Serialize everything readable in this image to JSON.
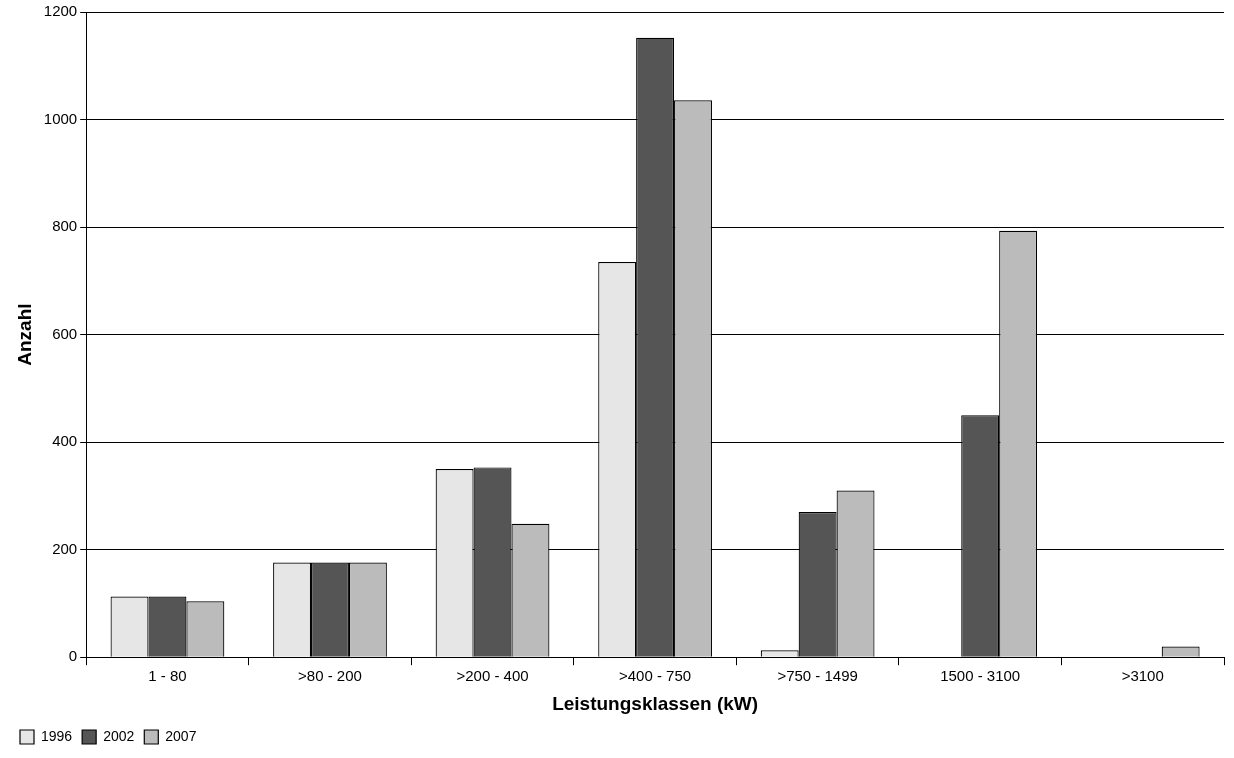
{
  "chart_data": {
    "type": "bar",
    "xlabel": "Leistungsklassen (kW)",
    "ylabel": "Anzahl",
    "categories": [
      "1 - 80",
      ">80 - 200",
      ">200 - 400",
      ">400 - 750",
      ">750 - 1499",
      "1500 - 3100",
      ">3100"
    ],
    "series": [
      {
        "name": "1996",
        "color": "#e6e6e6",
        "values": [
          113,
          176,
          350,
          735,
          13,
          0,
          0
        ]
      },
      {
        "name": "2002",
        "color": "#555555",
        "values": [
          113,
          176,
          353,
          1152,
          270,
          450,
          0
        ]
      },
      {
        "name": "2007",
        "color": "#bbbbbb",
        "values": [
          104,
          176,
          248,
          1036,
          310,
          793,
          20
        ]
      }
    ],
    "ylim": [
      0,
      1200
    ],
    "yticks": [
      0,
      200,
      400,
      600,
      800,
      1000,
      1200
    ],
    "grid": "y",
    "legend": "bottom left"
  }
}
